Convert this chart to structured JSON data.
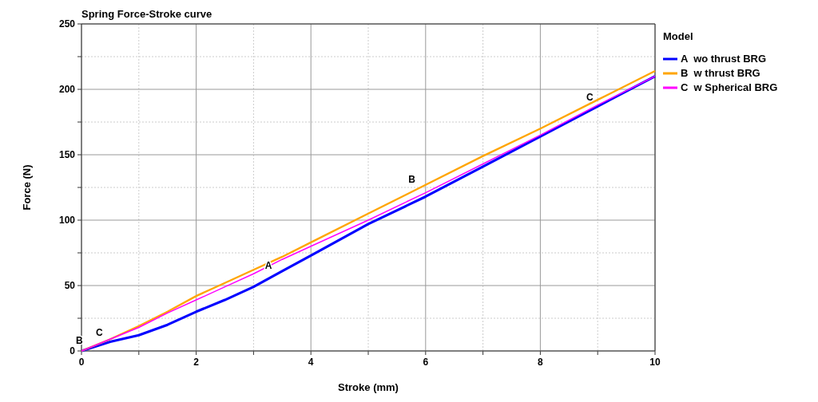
{
  "chart_data": {
    "type": "line",
    "title": "Spring Force-Stroke curve",
    "xlabel": "Stroke (mm)",
    "ylabel": "Force (N)",
    "legend_title": "Model",
    "legend": "right",
    "x": [
      0,
      0.5,
      1,
      1.5,
      2,
      2.5,
      3,
      3.5,
      4,
      5,
      6,
      7,
      8,
      9,
      10
    ],
    "series": [
      {
        "name": "A  wo thrust BRG",
        "color": "#0000ff",
        "values": [
          0,
          7,
          12,
          20,
          30,
          39,
          49,
          61,
          73,
          97,
          118,
          141,
          164,
          187,
          210
        ]
      },
      {
        "name": "B  w thrust BRG",
        "color": "#ffa500",
        "values": [
          0,
          9,
          19,
          30,
          42,
          52,
          62,
          72,
          83,
          105,
          127,
          149,
          170,
          192,
          214
        ]
      },
      {
        "name": "C  w Spherical BRG",
        "color": "#ff00ff",
        "values": [
          0,
          9,
          18,
          29,
          39,
          49,
          59,
          70,
          80,
          100,
          121,
          143,
          165,
          188,
          210
        ]
      }
    ],
    "xlim": [
      0,
      10
    ],
    "ylim": [
      0,
      250
    ],
    "xticks": [
      0,
      {
        "value": 1,
        "label": null
      },
      2,
      {
        "value": 3,
        "label": null
      },
      4,
      {
        "value": 5,
        "label": null
      },
      6,
      {
        "value": 7,
        "label": null
      },
      8,
      {
        "value": 9,
        "label": null
      },
      10
    ],
    "yticks": [
      0,
      {
        "value": 25,
        "label": null
      },
      50,
      {
        "value": 75,
        "label": null
      },
      100,
      {
        "value": 125,
        "label": null
      },
      150,
      {
        "value": 175,
        "label": null
      },
      200,
      {
        "value": 225,
        "label": null
      },
      250
    ],
    "grid": true,
    "annotations": [
      {
        "text": "A",
        "x": 3.35,
        "y": 59
      },
      {
        "text": "B",
        "x": 0.05,
        "y": 2
      },
      {
        "text": "B",
        "x": 5.85,
        "y": 125
      },
      {
        "text": "C",
        "x": 0.4,
        "y": 8
      },
      {
        "text": "C",
        "x": 8.95,
        "y": 188
      }
    ]
  }
}
